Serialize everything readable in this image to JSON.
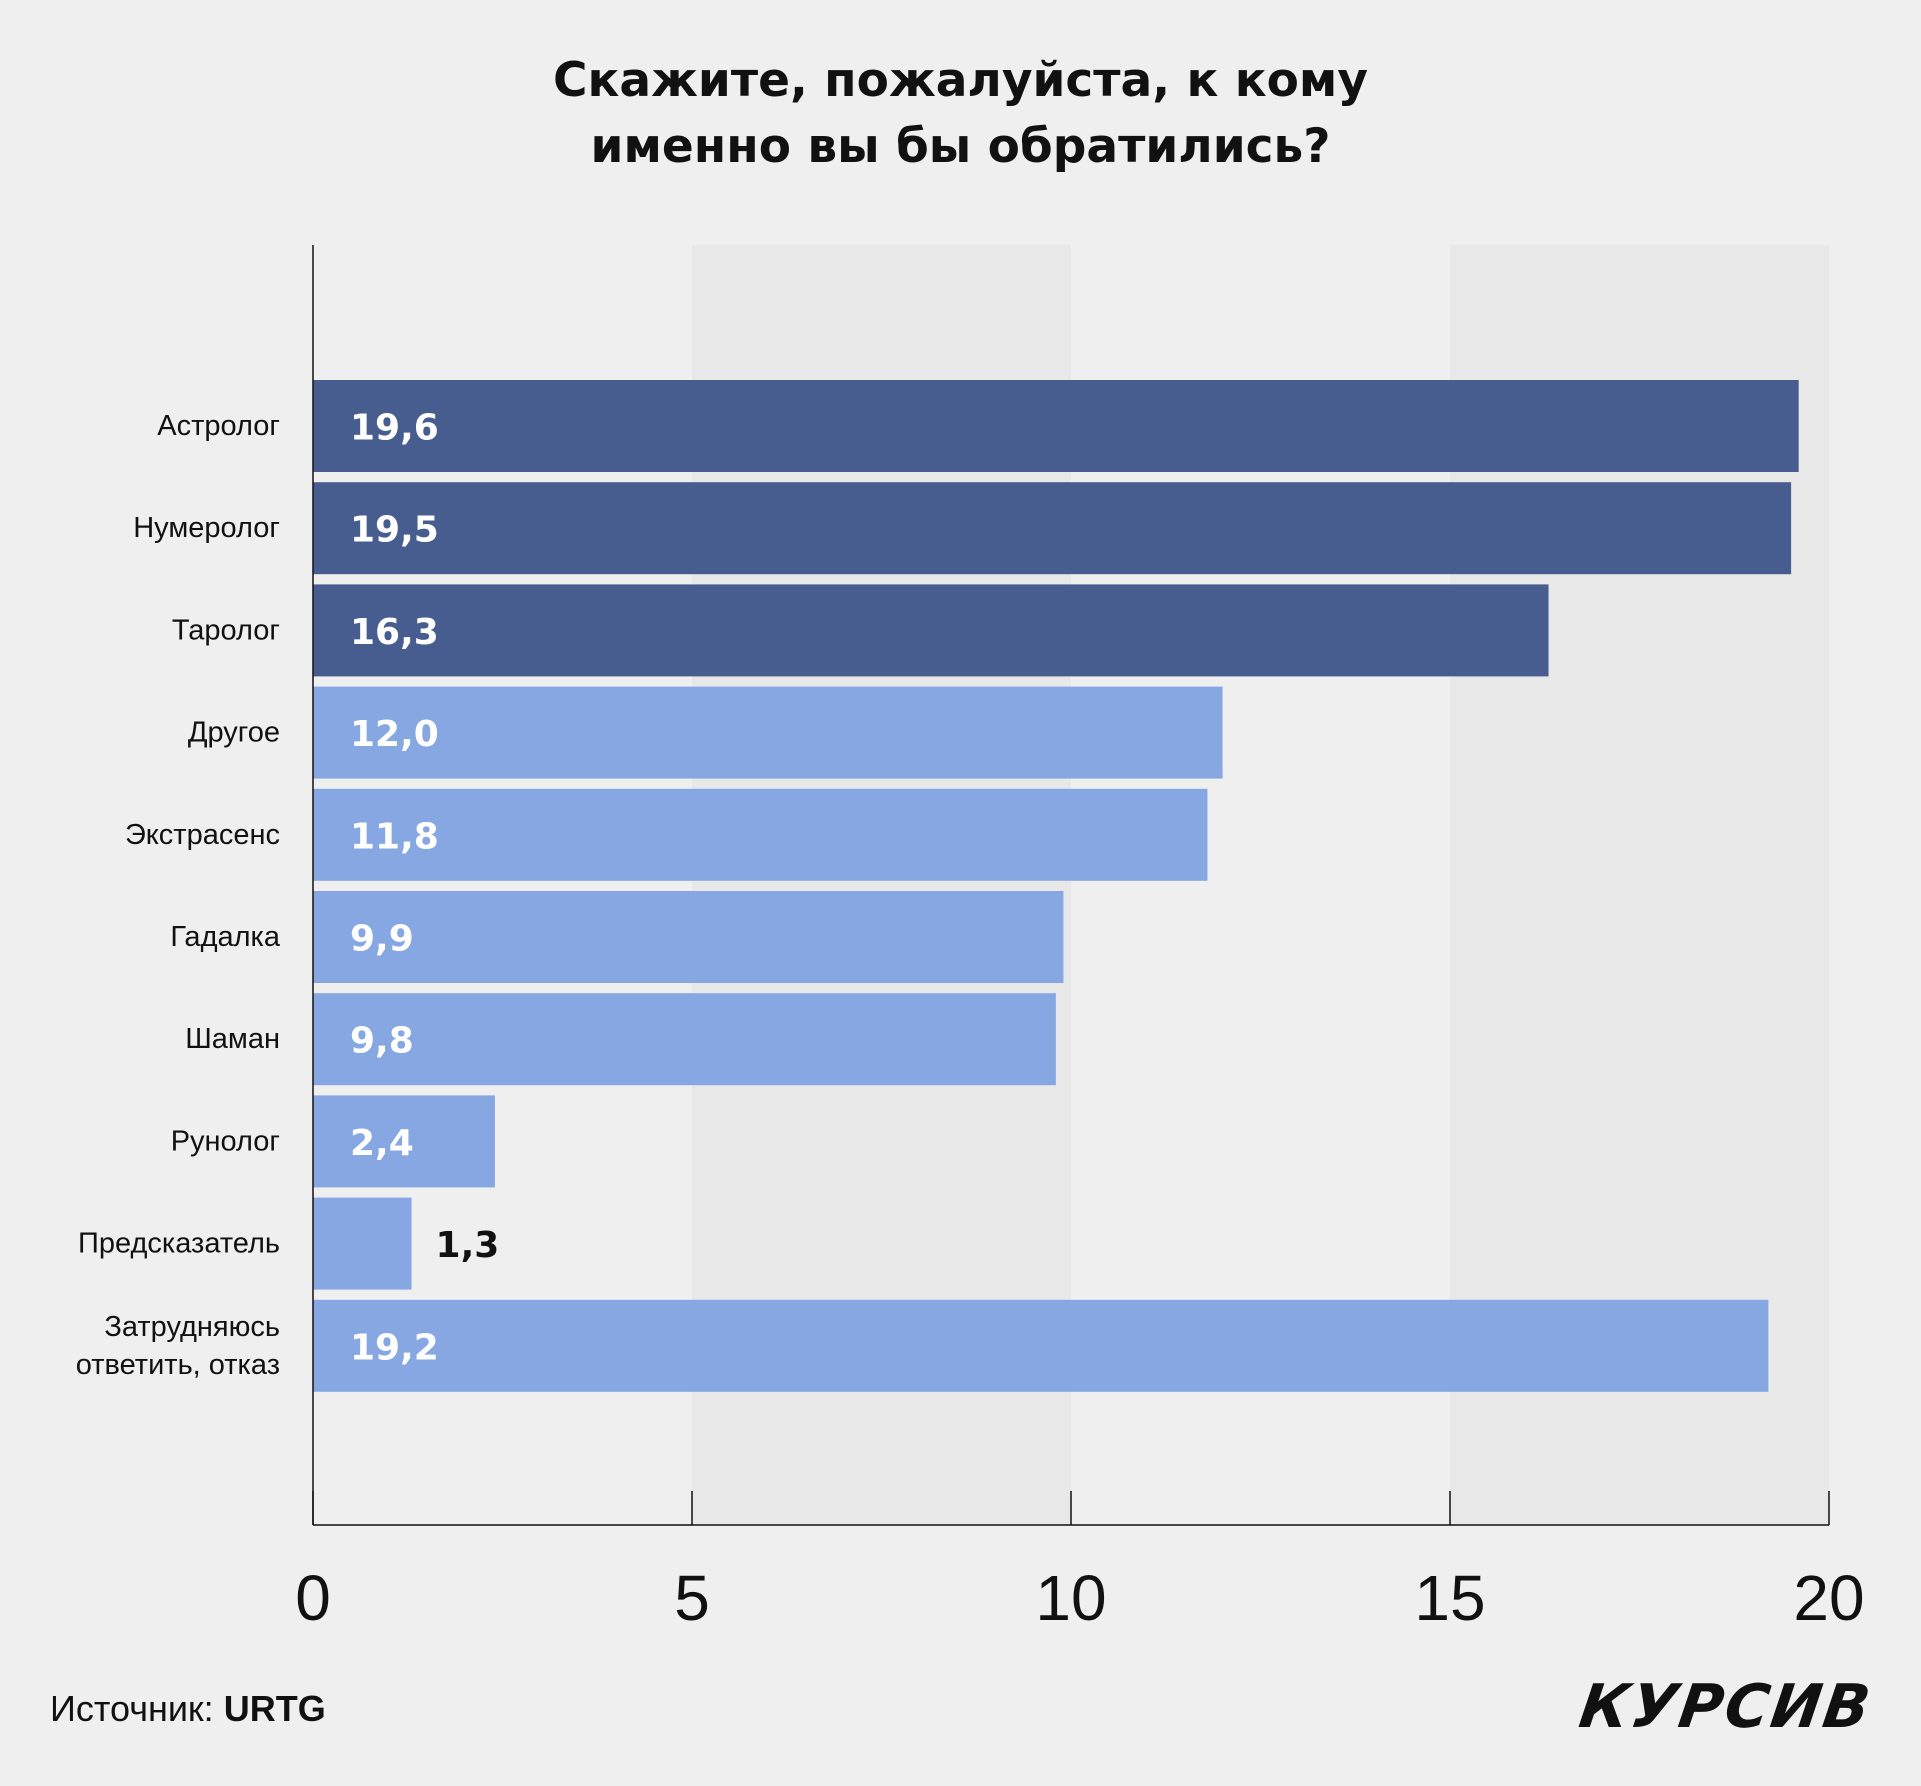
{
  "title_lines": [
    "Скажите, пожалуйста, к кому",
    "именно вы бы обратились?"
  ],
  "source": {
    "prefix": "Источник: ",
    "name": "URTG"
  },
  "logo": "КУРСИВ",
  "colors": {
    "background": "#efefef",
    "band": "#e8e8e8",
    "highlight": "#475c8f",
    "regular": "#86a7e2",
    "axis": "#111111",
    "label_on_bar": "#ffffff",
    "label_outside": "#111111"
  },
  "chart_data": {
    "type": "bar",
    "orientation": "horizontal",
    "title": "Скажите, пожалуйста, к кому именно вы бы обратились?",
    "xlim": [
      0,
      20
    ],
    "xticks": [
      0,
      5,
      10,
      15,
      20
    ],
    "xtick_labels": [
      "0",
      "5",
      "10",
      "15",
      "20"
    ],
    "grid": "alternating vertical bands",
    "categories": [
      [
        "Астролог"
      ],
      [
        "Нумеролог"
      ],
      [
        "Таролог"
      ],
      [
        "Другое"
      ],
      [
        "Экстрасенс"
      ],
      [
        "Гадалка"
      ],
      [
        "Шаман"
      ],
      [
        "Рунолог"
      ],
      [
        "Предсказатель"
      ],
      [
        "Затрудняюсь",
        "ответить, отказ"
      ]
    ],
    "values": [
      19.6,
      19.5,
      16.3,
      12.0,
      11.8,
      9.9,
      9.8,
      2.4,
      1.3,
      19.2
    ],
    "value_labels": [
      "19,6",
      "19,5",
      "16,3",
      "12,0",
      "11,8",
      "9,9",
      "9,8",
      "2,4",
      "1,3",
      "19,2"
    ],
    "highlight": [
      true,
      true,
      true,
      false,
      false,
      false,
      false,
      false,
      false,
      false
    ]
  }
}
